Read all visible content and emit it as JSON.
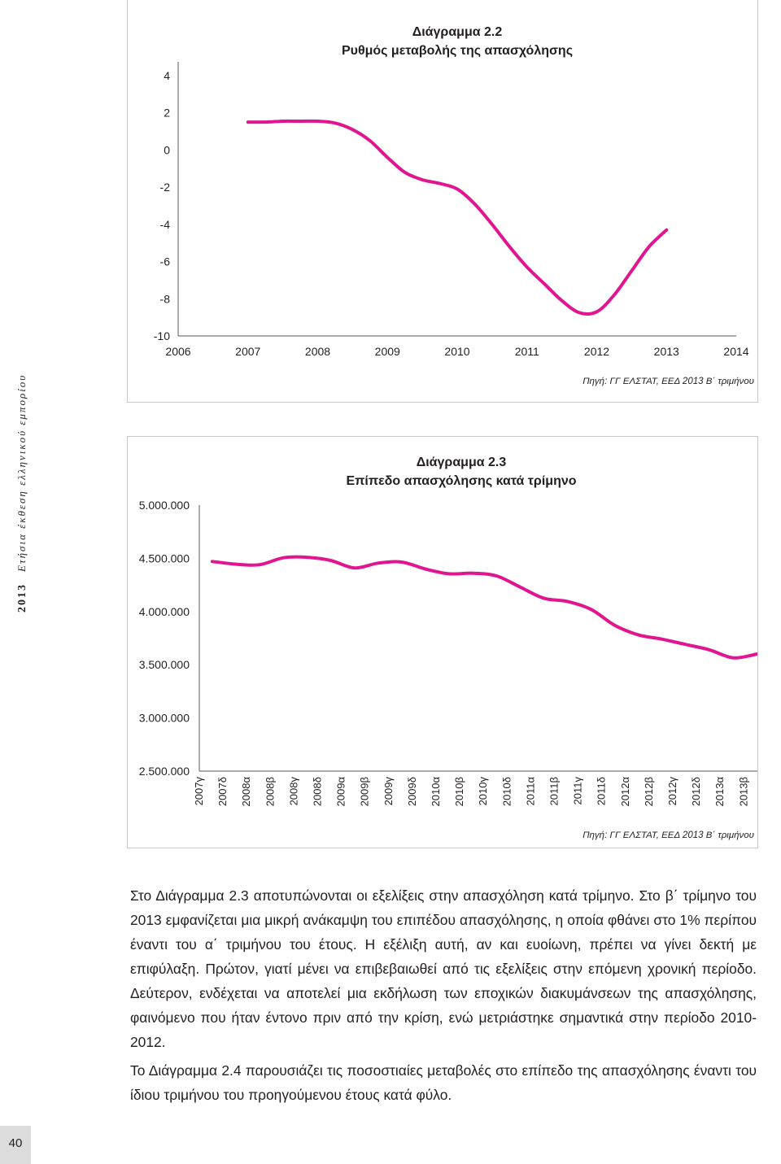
{
  "side_label": {
    "year": "2013",
    "title": "Ετήσια έκθεση ελληνικού εμπορίου"
  },
  "colors": {
    "line": "#e0158f",
    "text": "#231f20",
    "frame": "#c8c8c8"
  },
  "chart_data": [
    {
      "type": "line",
      "title": "Διάγραμμα 2.2",
      "subtitle": "Ρυθμός μεταβολής της απασχόλησης",
      "source": "Πηγή: ΓΓ ΕΛΣΤΑΤ, ΕΕΔ 2013 Β΄ τριμήνου",
      "xlabel": "",
      "ylabel": "",
      "xlim": [
        2006,
        2014
      ],
      "ylim": [
        -10,
        4
      ],
      "x_ticks": [
        "2006",
        "2007",
        "2008",
        "2009",
        "2010",
        "2011",
        "2012",
        "2013",
        "2014"
      ],
      "y_ticks": [
        "4",
        "2",
        "0",
        "-2",
        "-4",
        "-6",
        "-8",
        "-10"
      ],
      "grid": false,
      "series": [
        {
          "x": [
            2007.0,
            2007.25,
            2007.5,
            2007.75,
            2008.0,
            2008.25,
            2008.5,
            2008.75,
            2009.0,
            2009.25,
            2009.5,
            2009.75,
            2010.0,
            2010.25,
            2010.5,
            2010.75,
            2011.0,
            2011.25,
            2011.5,
            2011.75,
            2012.0,
            2012.25,
            2012.5,
            2012.75,
            2013.0
          ],
          "y": [
            1.5,
            1.5,
            1.55,
            1.55,
            1.55,
            1.45,
            1.1,
            0.5,
            -0.4,
            -1.2,
            -1.6,
            -1.8,
            -2.1,
            -2.9,
            -4.0,
            -5.2,
            -6.3,
            -7.2,
            -8.1,
            -8.75,
            -8.7,
            -7.8,
            -6.5,
            -5.2,
            -4.3
          ]
        }
      ]
    },
    {
      "type": "line",
      "title": "Διάγραμμα 2.3",
      "subtitle": "Επίπεδο απασχόλησης κατά τρίμηνο",
      "source": "Πηγή: ΓΓ ΕΛΣΤΑΤ, ΕΕΔ 2013 Β΄ τριμήνου",
      "xlabel": "",
      "ylabel": "",
      "ylim": [
        2500000,
        5000000
      ],
      "y_ticks": [
        "5.000.000",
        "4.500.000",
        "4.000.000",
        "3.500.000",
        "3.000.000",
        "2.500.000"
      ],
      "grid": false,
      "categories": [
        "2007γ",
        "2007δ",
        "2008α",
        "2008β",
        "2008γ",
        "2008δ",
        "2009α",
        "2009β",
        "2009γ",
        "2009δ",
        "2010α",
        "2010β",
        "2010γ",
        "2010δ",
        "2011α",
        "2011β",
        "2011γ",
        "2011δ",
        "2012α",
        "2012β",
        "2012γ",
        "2012δ",
        "2013α",
        "2013β"
      ],
      "series": [
        {
          "values": [
            4470000,
            4445000,
            4440000,
            4505000,
            4510000,
            4480000,
            4410000,
            4455000,
            4465000,
            4400000,
            4355000,
            4360000,
            4335000,
            4230000,
            4125000,
            4095000,
            4020000,
            3870000,
            3780000,
            3740000,
            3690000,
            3640000,
            3565000,
            3600000
          ]
        }
      ]
    }
  ],
  "body": {
    "paragraph1": "Στο Διάγραμμα 2.3 αποτυπώνονται οι εξελίξεις στην απασχόληση κατά τρίμηνο. Στο β΄ τρίμηνο του 2013 εμφανίζεται μια μικρή ανάκαμψη του επιπέδου απασχόλησης, η οποία φθάνει στο 1% περίπου έναντι του α΄ τριμήνου του έτους. Η εξέλιξη αυτή, αν και ευοίωνη, πρέπει να γίνει δεκτή με επιφύλαξη. Πρώτον, γιατί μένει να επιβεβαιωθεί από τις εξελίξεις στην επόμενη χρονική περίοδο. Δεύτερον, ενδέχεται να αποτελεί μια εκδήλωση των εποχικών διακυμάνσεων της απασχόλησης, φαινόμενο που ήταν έντονο πριν από την κρίση, ενώ μετριάστηκε σημαντικά στην περίοδο 2010-2012.",
    "paragraph2": "Το Διάγραμμα 2.4 παρουσιάζει τις ποσοστιαίες μεταβολές στο επίπεδο της απασχόλησης έναντι του ίδιου τριμήνου του προηγούμενου έτους κατά φύλο."
  },
  "page_number": "40"
}
